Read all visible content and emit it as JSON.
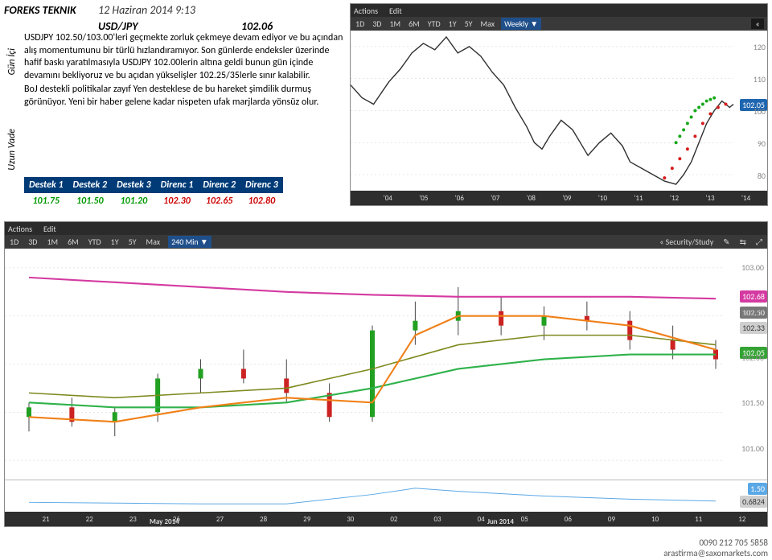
{
  "header": {
    "title": "FOREKS TEKNIK",
    "date": "12 Haziran 2014 9:13",
    "pair": "USD/JPY",
    "price": "102.06"
  },
  "sidebar": {
    "gun_ici": "Gün İçi",
    "uzun_vade": "Uzun\nVade"
  },
  "analysis": {
    "p1": "USDJPY 102.50/103.00'leri geçmekte zorluk çekmeye devam ediyor ve bu açından alış momentumunu bir türlü hızlandıramıyor. Son günlerde endeksler üzerinde hafif baskı yaratılmasıyla USDJPY 102.00lerin altına geldi bunun gün içinde devamını bekliyoruz ve bu açıdan yükselişler 102.25/35lerle sınır kalabilir.",
    "p2": "BoJ destekli politikalar zayıf Yen desteklese de bu hareket şimdilik durmuş görünüyor. Yeni bir haber gelene kadar nispeten ufak marjlarda yönsüz olur."
  },
  "sr": {
    "headers": [
      "Destek 1",
      "Destek 2",
      "Destek 3",
      "Direnc 1",
      "Direnc 2",
      "Direnc 3"
    ],
    "values": [
      "101.75",
      "101.50",
      "101.20",
      "102.30",
      "102.65",
      "102.80"
    ],
    "header_bg": "#003b78",
    "header_fg": "#ffffff",
    "s_color": "#009900",
    "r_color": "#cc0000"
  },
  "chart1": {
    "type": "line",
    "toolbar": [
      "Actions",
      "Edit"
    ],
    "ranges": [
      "1D",
      "3D",
      "1M",
      "6M",
      "YTD",
      "1Y",
      "5Y",
      "Max"
    ],
    "selected_range": "Weekly ▼",
    "bg": "#ffffff",
    "toolbar_bg": "#2b2b2b",
    "range_bg": "#393939",
    "range_sel_bg": "#1f4f8a",
    "grid_color": "#cccccc",
    "ylim": [
      75,
      125
    ],
    "yticks": [
      80,
      90,
      100,
      110,
      120
    ],
    "price_badge": {
      "value": "102.05",
      "bg": "#1f66b0",
      "fg": "#ffffff",
      "y": 102.05
    },
    "xlabels": [
      "'04",
      "'05",
      "'06",
      "'07",
      "'08",
      "'09",
      "'10",
      "'11",
      "'12",
      "'13",
      "'14"
    ],
    "series": {
      "main": {
        "color": "#2f2f2f",
        "width": 1.4,
        "xy": [
          [
            0,
            108
          ],
          [
            3,
            104
          ],
          [
            6,
            102
          ],
          [
            10,
            109
          ],
          [
            13,
            113
          ],
          [
            16,
            118
          ],
          [
            19,
            121
          ],
          [
            22,
            119
          ],
          [
            25,
            123
          ],
          [
            28,
            118
          ],
          [
            31,
            120
          ],
          [
            34,
            117
          ],
          [
            37,
            112
          ],
          [
            40,
            108
          ],
          [
            43,
            101
          ],
          [
            46,
            95
          ],
          [
            48,
            90
          ],
          [
            50,
            88
          ],
          [
            52,
            92
          ],
          [
            55,
            97
          ],
          [
            58,
            94
          ],
          [
            60,
            90
          ],
          [
            62,
            86
          ],
          [
            65,
            90
          ],
          [
            68,
            93
          ],
          [
            71,
            89
          ],
          [
            73,
            84
          ],
          [
            76,
            82
          ],
          [
            79,
            80
          ],
          [
            82,
            78
          ],
          [
            85,
            77
          ],
          [
            87,
            80
          ],
          [
            89,
            84
          ],
          [
            91,
            90
          ],
          [
            93,
            96
          ],
          [
            95,
            100
          ],
          [
            97,
            103
          ],
          [
            99,
            101
          ],
          [
            100,
            102
          ]
        ]
      },
      "green_dots": {
        "color": "#16a81a",
        "xy": [
          [
            85,
            90
          ],
          [
            86,
            92
          ],
          [
            87,
            94
          ],
          [
            88,
            96
          ],
          [
            89,
            98
          ],
          [
            90,
            100
          ],
          [
            91,
            101
          ],
          [
            92,
            102
          ],
          [
            93,
            103
          ],
          [
            94,
            103.5
          ],
          [
            95,
            104
          ]
        ]
      },
      "red_dots": {
        "color": "#d61c1c",
        "xy": [
          [
            82,
            79
          ],
          [
            84,
            82
          ],
          [
            86,
            85
          ],
          [
            88,
            88
          ],
          [
            90,
            92
          ],
          [
            92,
            96
          ],
          [
            94,
            99
          ],
          [
            96,
            101
          ],
          [
            98,
            102
          ]
        ]
      }
    }
  },
  "chart2": {
    "type": "line",
    "toolbar": [
      "Actions",
      "Edit"
    ],
    "ranges": [
      "1D",
      "3D",
      "1M",
      "6M",
      "YTD",
      "1Y",
      "5Y",
      "Max"
    ],
    "selected_range": "240 Min ▼",
    "right_icons": [
      "« Security/Study",
      "✎",
      "⇆",
      "⤢"
    ],
    "chev": "«",
    "bg": "#ffffff",
    "grid_color": "#cccccc",
    "ylim": [
      100.8,
      103.2
    ],
    "yticks": [
      101.0,
      101.5,
      102.0,
      102.5,
      103.0
    ],
    "badges": [
      {
        "value": "102.68",
        "bg": "#d43aa1",
        "fg": "#ffffff",
        "y": 102.68
      },
      {
        "value": "102.50",
        "bg": "#777777",
        "fg": "#ffffff",
        "y": 102.5
      },
      {
        "value": "102.33",
        "bg": "#cfcfcf",
        "fg": "#333333",
        "y": 102.33
      },
      {
        "value": "102.05",
        "bg": "#34a334",
        "fg": "#ffffff",
        "y": 102.05
      }
    ],
    "xlabels": [
      "21",
      "22",
      "23",
      "26",
      "27",
      "28",
      "29",
      "30",
      "02",
      "03",
      "04",
      "05",
      "06",
      "09",
      "10",
      "11",
      "12"
    ],
    "xmonth_left": "May 2014",
    "xmonth_right": "Jun 2014",
    "series": {
      "candles": {
        "up": "#22a022",
        "down": "#cc2222",
        "width": 6,
        "ohlc": [
          [
            0,
            101.45,
            101.6,
            101.3,
            101.55
          ],
          [
            1,
            101.55,
            101.65,
            101.35,
            101.4
          ],
          [
            2,
            101.4,
            101.55,
            101.25,
            101.5
          ],
          [
            3,
            101.5,
            101.9,
            101.4,
            101.85
          ],
          [
            4,
            101.85,
            102.05,
            101.7,
            101.95
          ],
          [
            5,
            101.95,
            102.15,
            101.8,
            101.85
          ],
          [
            6,
            101.85,
            102.05,
            101.6,
            101.7
          ],
          [
            7,
            101.7,
            101.8,
            101.4,
            101.45
          ],
          [
            8,
            101.45,
            102.4,
            101.4,
            102.35
          ],
          [
            9,
            102.35,
            102.65,
            102.2,
            102.45
          ],
          [
            10,
            102.45,
            102.8,
            102.3,
            102.55
          ],
          [
            11,
            102.55,
            102.7,
            102.3,
            102.4
          ],
          [
            12,
            102.4,
            102.6,
            102.25,
            102.5
          ],
          [
            13,
            102.5,
            102.65,
            102.35,
            102.45
          ],
          [
            14,
            102.45,
            102.55,
            102.15,
            102.25
          ],
          [
            15,
            102.25,
            102.4,
            102.05,
            102.15
          ],
          [
            16,
            102.15,
            102.25,
            101.95,
            102.05
          ]
        ]
      },
      "ma_pink": {
        "color": "#d43aa1",
        "width": 2,
        "xy": [
          [
            0,
            102.9
          ],
          [
            2,
            102.85
          ],
          [
            4,
            102.8
          ],
          [
            6,
            102.75
          ],
          [
            8,
            102.72
          ],
          [
            10,
            102.7
          ],
          [
            12,
            102.7
          ],
          [
            14,
            102.7
          ],
          [
            16,
            102.68
          ]
        ]
      },
      "ma_green": {
        "color": "#2fb24a",
        "width": 2,
        "xy": [
          [
            0,
            101.6
          ],
          [
            2,
            101.55
          ],
          [
            4,
            101.55
          ],
          [
            6,
            101.6
          ],
          [
            8,
            101.75
          ],
          [
            10,
            101.95
          ],
          [
            12,
            102.05
          ],
          [
            14,
            102.1
          ],
          [
            16,
            102.1
          ]
        ]
      },
      "ma_olive": {
        "color": "#7d8a1e",
        "width": 1.5,
        "xy": [
          [
            0,
            101.7
          ],
          [
            2,
            101.65
          ],
          [
            4,
            101.7
          ],
          [
            6,
            101.75
          ],
          [
            8,
            101.95
          ],
          [
            10,
            102.2
          ],
          [
            12,
            102.3
          ],
          [
            14,
            102.3
          ],
          [
            16,
            102.2
          ]
        ]
      },
      "ma_orange": {
        "color": "#f08018",
        "width": 2,
        "xy": [
          [
            0,
            101.45
          ],
          [
            2,
            101.4
          ],
          [
            4,
            101.55
          ],
          [
            6,
            101.65
          ],
          [
            8,
            101.6
          ],
          [
            9,
            102.3
          ],
          [
            10,
            102.5
          ],
          [
            12,
            102.5
          ],
          [
            14,
            102.4
          ],
          [
            16,
            102.15
          ]
        ]
      }
    },
    "indicator": {
      "ylim": [
        0,
        2.0
      ],
      "badges": [
        {
          "value": "1.50",
          "bg": "#5aa8e6",
          "fg": "#ffffff",
          "y": 1.5
        },
        {
          "value": "0.6824",
          "bg": "#cfcfcf",
          "fg": "#333333",
          "y": 0.6824
        }
      ],
      "line": {
        "color": "#5aa8e6",
        "width": 1,
        "xy": [
          [
            0,
            0.6
          ],
          [
            2,
            0.55
          ],
          [
            4,
            0.5
          ],
          [
            6,
            0.5
          ],
          [
            8,
            1.1
          ],
          [
            9,
            1.5
          ],
          [
            10,
            1.3
          ],
          [
            12,
            1.0
          ],
          [
            14,
            0.8
          ],
          [
            16,
            0.68
          ]
        ]
      }
    }
  },
  "footer": {
    "phone": "0090 212 705 5858",
    "email": "arastirma@saxomarkets.com"
  }
}
